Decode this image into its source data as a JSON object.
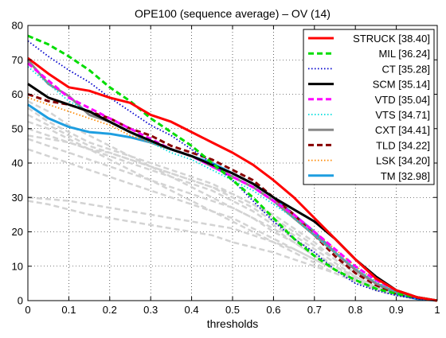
{
  "chart_data": {
    "type": "line",
    "title": "OPE100 (sequence average) – OV (14)",
    "xlabel": "thresholds",
    "ylabel": "",
    "xlim": [
      0,
      1
    ],
    "ylim": [
      0,
      80
    ],
    "xticks": [
      "0",
      "0.1",
      "0.2",
      "0.3",
      "0.4",
      "0.5",
      "0.6",
      "0.7",
      "0.8",
      "0.9",
      "1"
    ],
    "xtick_values": [
      0,
      0.1,
      0.2,
      0.3,
      0.4,
      0.5,
      0.6,
      0.7,
      0.8,
      0.9,
      1
    ],
    "yticks": [
      "0",
      "10",
      "20",
      "30",
      "40",
      "50",
      "60",
      "70",
      "80"
    ],
    "ytick_values": [
      0,
      10,
      20,
      30,
      40,
      50,
      60,
      70,
      80
    ],
    "grid": true,
    "legend_position": "top-right",
    "x": [
      0,
      0.05,
      0.1,
      0.15,
      0.2,
      0.25,
      0.3,
      0.35,
      0.4,
      0.45,
      0.5,
      0.55,
      0.6,
      0.65,
      0.7,
      0.75,
      0.8,
      0.85,
      0.9,
      0.95,
      1.0
    ],
    "series": [
      {
        "name": "STRUCK [38.40]",
        "color": "#ff0000",
        "dash": "solid",
        "values": [
          70.5,
          66,
          62,
          61,
          59,
          57.5,
          54,
          52,
          49,
          46,
          43,
          39.5,
          35,
          30,
          24,
          18,
          12,
          6.5,
          3,
          1,
          0
        ]
      },
      {
        "name": "MIL  [36.24]",
        "color": "#00dd00",
        "dash": "dash",
        "values": [
          77,
          74.5,
          71,
          67,
          62,
          58,
          53,
          49,
          45,
          40,
          35,
          30,
          24,
          18,
          13,
          9,
          6,
          3.5,
          2,
          1,
          0
        ]
      },
      {
        "name": "CT  [35.28]",
        "color": "#0000cc",
        "dash": "dot",
        "values": [
          75.5,
          71,
          67,
          63.5,
          59,
          55,
          51,
          48,
          44,
          40,
          35,
          29,
          23,
          18,
          14,
          9,
          5,
          3,
          1.5,
          0.5,
          0
        ]
      },
      {
        "name": "SCM  [35.14]",
        "color": "#000000",
        "dash": "solid",
        "values": [
          63,
          59,
          57,
          55,
          52,
          49,
          46.5,
          44,
          42,
          39.5,
          37,
          34,
          30,
          26.5,
          23,
          18,
          12,
          7,
          3,
          1,
          0
        ]
      },
      {
        "name": "VTD  [35.04]",
        "color": "#ff00ff",
        "dash": "dash",
        "values": [
          69,
          64,
          59,
          56,
          53,
          50,
          47,
          44,
          42,
          39,
          36,
          33,
          29,
          25,
          20,
          15,
          10,
          6,
          3,
          1,
          0
        ]
      },
      {
        "name": "VTS  [34.71]",
        "color": "#00dddd",
        "dash": "dot",
        "values": [
          68,
          63,
          58,
          55,
          52,
          49,
          46,
          43,
          41,
          38,
          35,
          32,
          28,
          24,
          19,
          14,
          9.5,
          5.5,
          2.5,
          1,
          0
        ]
      },
      {
        "name": "CXT  [34.41]",
        "color": "#888888",
        "dash": "solid",
        "values": [
          70,
          63,
          59.5,
          54,
          52,
          49,
          46,
          44,
          42,
          39,
          36,
          33,
          29,
          24,
          19,
          14,
          9,
          5,
          2.5,
          1,
          0
        ]
      },
      {
        "name": "TLD  [34.22]",
        "color": "#880000",
        "dash": "dash",
        "values": [
          60,
          58,
          57,
          55,
          53,
          50,
          48,
          45,
          43,
          41,
          38,
          35,
          30,
          25,
          19,
          13,
          8,
          4.5,
          2,
          0.8,
          0
        ]
      },
      {
        "name": "LSK  [34.20]",
        "color": "#ff8800",
        "dash": "dot",
        "values": [
          59,
          57,
          55,
          53,
          51,
          48,
          46,
          44,
          42,
          39,
          36,
          33,
          29,
          25,
          20,
          15,
          10,
          6,
          3,
          1,
          0
        ]
      },
      {
        "name": "TM  [32.98]",
        "color": "#1e9ee0",
        "dash": "solid",
        "values": [
          57,
          53,
          50.5,
          49,
          48.5,
          47.5,
          46,
          44,
          42,
          40,
          37,
          34,
          30,
          25,
          20,
          14,
          9,
          5,
          2,
          0.5,
          0
        ]
      }
    ],
    "background_series": [
      {
        "color": "#d3d3d3",
        "values": [
          56,
          52,
          49,
          46,
          44,
          42,
          40,
          38,
          36,
          34,
          31,
          28,
          24,
          20,
          16,
          12,
          8,
          5,
          2.5,
          1,
          0
        ]
      },
      {
        "color": "#d3d3d3",
        "values": [
          54,
          51,
          48,
          45,
          43,
          41,
          39,
          37,
          35,
          33,
          30,
          27,
          23,
          19,
          15,
          11,
          7,
          4,
          2,
          0.8,
          0
        ]
      },
      {
        "color": "#d3d3d3",
        "values": [
          50,
          48,
          46,
          44,
          42,
          40,
          38,
          36,
          34,
          32,
          29,
          26,
          22,
          18,
          14,
          10,
          6.5,
          4,
          2,
          0.8,
          0
        ]
      },
      {
        "color": "#d3d3d3",
        "values": [
          47,
          45,
          43,
          41,
          39,
          37,
          35,
          33,
          31,
          29,
          27,
          24,
          21,
          17,
          13,
          9,
          6,
          3.5,
          1.5,
          0.5,
          0
        ]
      },
      {
        "color": "#d3d3d3",
        "values": [
          52,
          50,
          47,
          44,
          41,
          38,
          35,
          32,
          29,
          26,
          23,
          20,
          17,
          14,
          11,
          8,
          5.5,
          3,
          1.5,
          0.5,
          0
        ]
      },
      {
        "color": "#d3d3d3",
        "values": [
          44,
          42,
          40,
          38,
          36,
          34,
          32,
          30,
          28,
          26,
          24,
          21,
          18,
          15,
          12,
          9,
          6,
          3.5,
          1.5,
          0.5,
          0
        ]
      },
      {
        "color": "#d3d3d3",
        "values": [
          30,
          29.5,
          29,
          28,
          27,
          26,
          25,
          24,
          23,
          22,
          21,
          19,
          17,
          15,
          12,
          9,
          6,
          3.5,
          1.5,
          0.5,
          0
        ]
      },
      {
        "color": "#d3d3d3",
        "values": [
          29,
          28,
          26.5,
          25,
          24,
          23,
          22,
          21,
          20,
          19,
          17,
          15.5,
          14,
          12,
          10,
          8,
          5.5,
          3.5,
          1.5,
          0.5,
          0
        ]
      },
      {
        "color": "#d3d3d3",
        "values": [
          58,
          55,
          51,
          48,
          45,
          42,
          39,
          36,
          33,
          30,
          27,
          24,
          20,
          17,
          13,
          10,
          7,
          4,
          2,
          0.8,
          0
        ]
      },
      {
        "color": "#d3d3d3",
        "values": [
          48,
          47,
          46,
          44,
          43,
          41,
          39,
          37,
          35,
          33,
          31,
          28,
          25,
          21,
          17,
          12,
          8,
          5,
          2,
          0.8,
          0
        ]
      }
    ]
  }
}
